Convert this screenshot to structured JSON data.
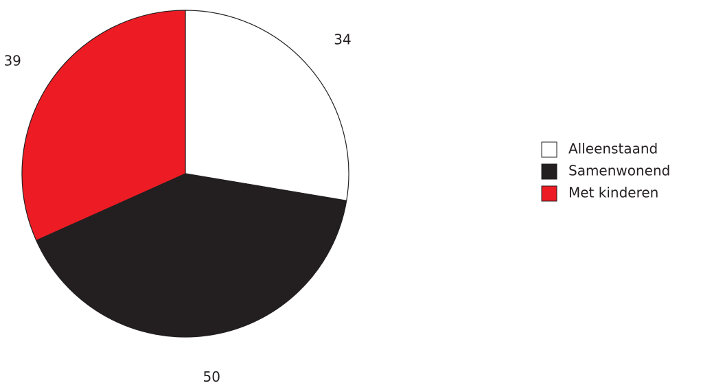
{
  "chart_data": {
    "type": "pie",
    "slices": [
      {
        "label": "Alleenstaand",
        "value": 34,
        "color": "#ffffff",
        "data_label": "34"
      },
      {
        "label": "Samenwonend",
        "value": 50,
        "color": "#231f20",
        "data_label": "50"
      },
      {
        "label": "Met kinderen",
        "value": 39,
        "color": "#ed1c24",
        "data_label": "39"
      }
    ],
    "start_angle": "12 o'clock",
    "direction": "clockwise",
    "outline_color": "#231f20",
    "legend": {
      "placement": "right",
      "entries": [
        "Alleenstaand",
        "Samenwonend",
        "Met kinderen"
      ]
    }
  }
}
